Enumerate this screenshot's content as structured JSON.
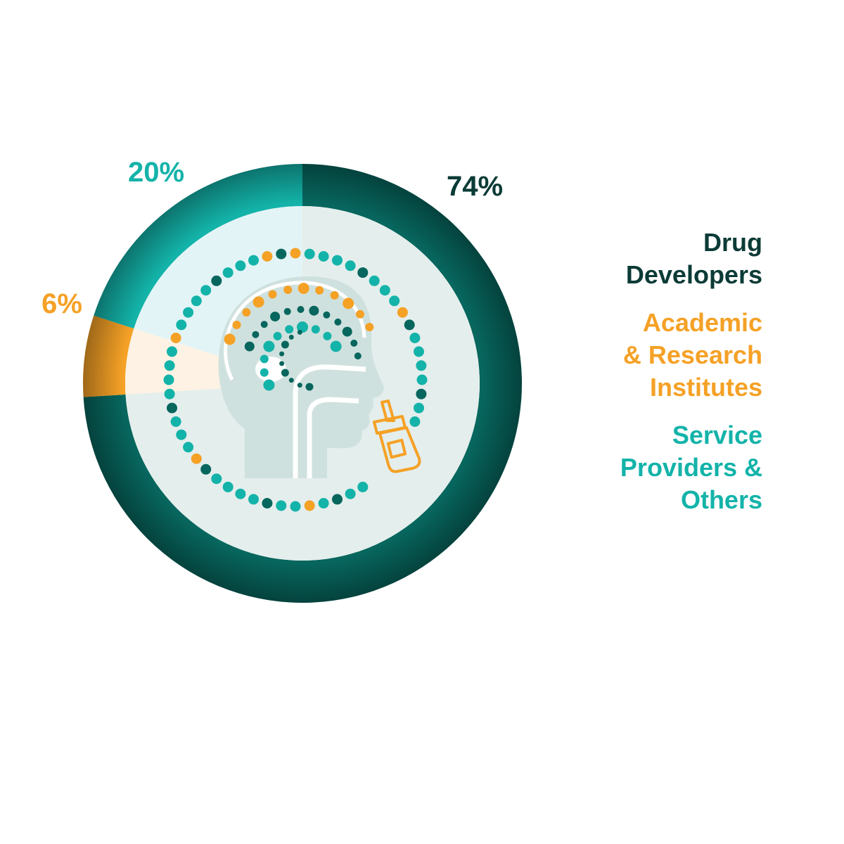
{
  "chart_data": {
    "type": "pie",
    "style": "donut",
    "categories": [
      "Drug Developers",
      "Academic & Research Institutes",
      "Service Providers & Others"
    ],
    "values": [
      74,
      6,
      20
    ],
    "labels": [
      "74%",
      "6%",
      "20%"
    ],
    "colors": [
      "#07665e",
      "#f5a126",
      "#13b3a9"
    ],
    "inner_tints": [
      "#e4eeec",
      "#fdf2e3",
      "#e3f4f6"
    ],
    "legend": "right",
    "center_illustration": "head-profile-with-nasal-spray"
  },
  "legend": [
    {
      "lines": [
        "Drug",
        "Developers"
      ],
      "color": "#0b3b36"
    },
    {
      "lines": [
        "Academic",
        "& Research",
        "Institutes"
      ],
      "color": "#f5a126"
    },
    {
      "lines": [
        "Service",
        "Providers &",
        "Others"
      ],
      "color": "#13b3a9"
    }
  ],
  "colors": {
    "illustration_fill": "#cfe1de",
    "illustration_line": "#ffffff",
    "dot_teal": "#13b3a9",
    "dot_dark": "#07665e",
    "dot_orange": "#f5a126"
  }
}
